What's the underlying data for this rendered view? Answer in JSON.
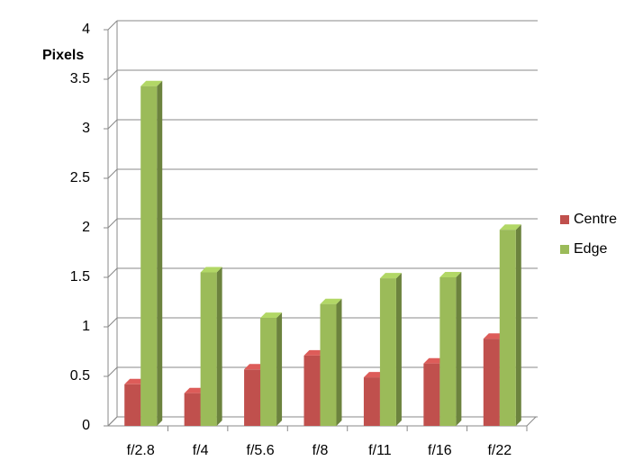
{
  "chart_data": {
    "type": "bar3d",
    "y_label": "Pixels",
    "categories": [
      "f/2.8",
      "f/4",
      "f/5.6",
      "f/8",
      "f/11",
      "f/16",
      "f/22"
    ],
    "series": [
      {
        "name": "Centre",
        "color": "#c0504d",
        "values": [
          0.42,
          0.33,
          0.57,
          0.71,
          0.49,
          0.63,
          0.88
        ]
      },
      {
        "name": "Edge",
        "color": "#9bbb59",
        "values": [
          3.43,
          1.55,
          1.09,
          1.23,
          1.49,
          1.5,
          1.98
        ]
      }
    ],
    "ylim": [
      0,
      4
    ],
    "yticks": [
      0,
      0.5,
      1,
      1.5,
      2,
      2.5,
      3,
      3.5,
      4
    ],
    "grid": true,
    "legend": "right"
  }
}
